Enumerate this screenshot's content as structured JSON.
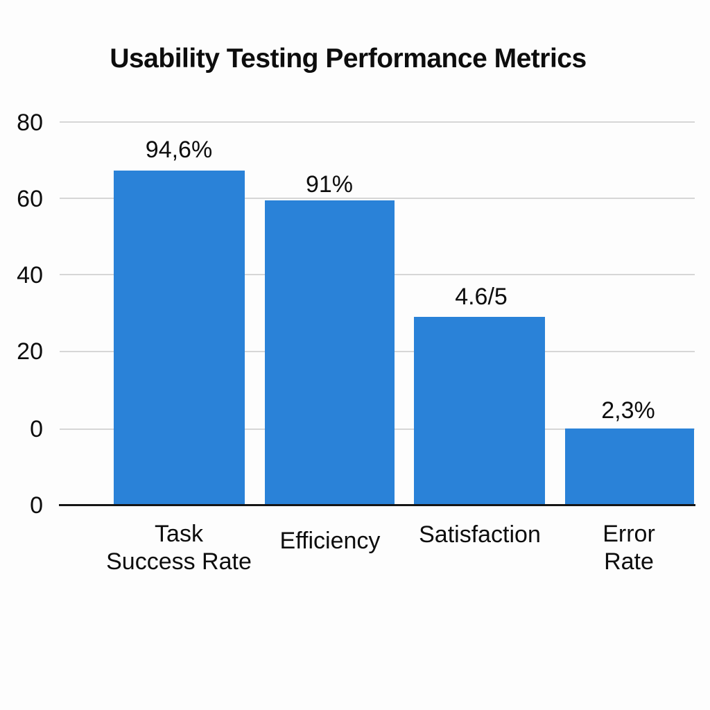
{
  "title": "Usability Testing Performance Metrics",
  "chart_data": {
    "type": "bar",
    "title": "Usability Testing Performance Metrics",
    "categories": [
      "Task Success Rate",
      "Efficiency",
      "Satisfaction",
      "Error Rate"
    ],
    "category_lines": [
      [
        "Task",
        "Success Rate"
      ],
      [
        "Efficiency"
      ],
      [
        "Satisfaction"
      ],
      [
        "Error",
        "Rate"
      ]
    ],
    "value_labels": [
      "94,6%",
      "91%",
      "4.6/5",
      "2,3%"
    ],
    "values_as_plotted": [
      87,
      79,
      49,
      20
    ],
    "y_tick_labels": [
      "80",
      "60",
      "40",
      "20",
      "0",
      "0"
    ],
    "ylim": [
      0,
      87
    ],
    "xlabel": "",
    "ylabel": "",
    "grid": true,
    "legend": "none",
    "bar_color": "#2a82d8",
    "gridline_color": "#d6d6d6",
    "axis_color": "#151515",
    "text_color": "#0d0d0d",
    "background_color": "#fdfdfd"
  }
}
